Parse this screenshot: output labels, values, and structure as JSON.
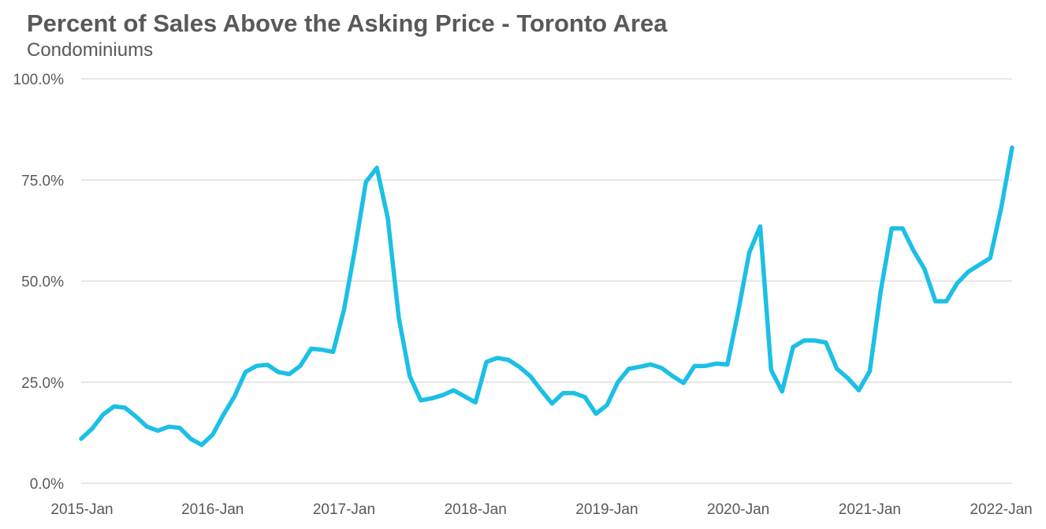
{
  "chart_data": {
    "type": "line",
    "title": "Percent of Sales Above the Asking Price - Toronto Area",
    "subtitle": "Condominiums",
    "xlabel": "",
    "ylabel": "",
    "ylim": [
      0,
      100
    ],
    "y_ticks": [
      "0.0%",
      "25.0%",
      "50.0%",
      "75.0%",
      "100.0%"
    ],
    "x_ticks": [
      "2015-Jan",
      "2016-Jan",
      "2017-Jan",
      "2018-Jan",
      "2019-Jan",
      "2020-Jan",
      "2021-Jan",
      "2022-Jan"
    ],
    "grid": true,
    "line_color": "#1CBFE6",
    "grid_color": "#d9d9d9",
    "series": [
      {
        "values": [
          11.0,
          13.5,
          17.0,
          19.0,
          18.7,
          16.5,
          14.0,
          13.0,
          14.0,
          13.7,
          11.0,
          9.5,
          12.0,
          17.0,
          21.5,
          27.5,
          29.0,
          29.3,
          27.5,
          27.0,
          29.0,
          33.3,
          33.0,
          32.5,
          43.0,
          58.0,
          74.5,
          78.0,
          65.5,
          41.0,
          26.5,
          20.5,
          21.0,
          21.8,
          23.0,
          21.5,
          20.0,
          30.0,
          31.0,
          30.5,
          28.8,
          26.5,
          23.0,
          19.7,
          22.3,
          22.3,
          21.3,
          17.2,
          19.3,
          25.0,
          28.3,
          28.8,
          29.4,
          28.5,
          26.5,
          24.8,
          29.0,
          29.0,
          29.6,
          29.4,
          42.5,
          57.0,
          63.5,
          28.0,
          22.7,
          33.7,
          35.3,
          35.3,
          34.8,
          28.3,
          26.0,
          23.0,
          27.7,
          47.5,
          63.0,
          63.0,
          57.5,
          53.0,
          45.0,
          45.0,
          49.5,
          52.3,
          54.0,
          55.7,
          68.0,
          83.0
        ]
      }
    ]
  }
}
